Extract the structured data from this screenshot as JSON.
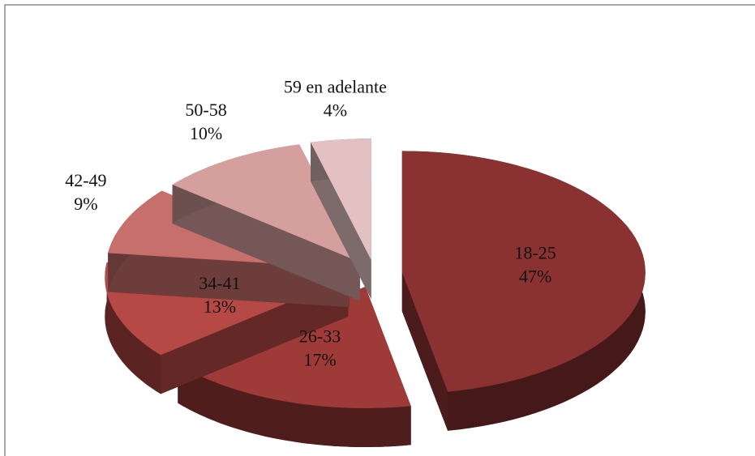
{
  "chart_data": {
    "type": "pie3d",
    "categories": [
      "18-25",
      "26-33",
      "34-41",
      "42-49",
      "50-58",
      "59 en adelante"
    ],
    "values": [
      47,
      17,
      13,
      9,
      10,
      4
    ],
    "value_labels": [
      "47%",
      "17%",
      "13%",
      "9%",
      "10%",
      "4%"
    ],
    "colors": [
      "#8a3131",
      "#9e3a38",
      "#b64846",
      "#c76f6d",
      "#d59f9e",
      "#e3c0c1"
    ]
  }
}
